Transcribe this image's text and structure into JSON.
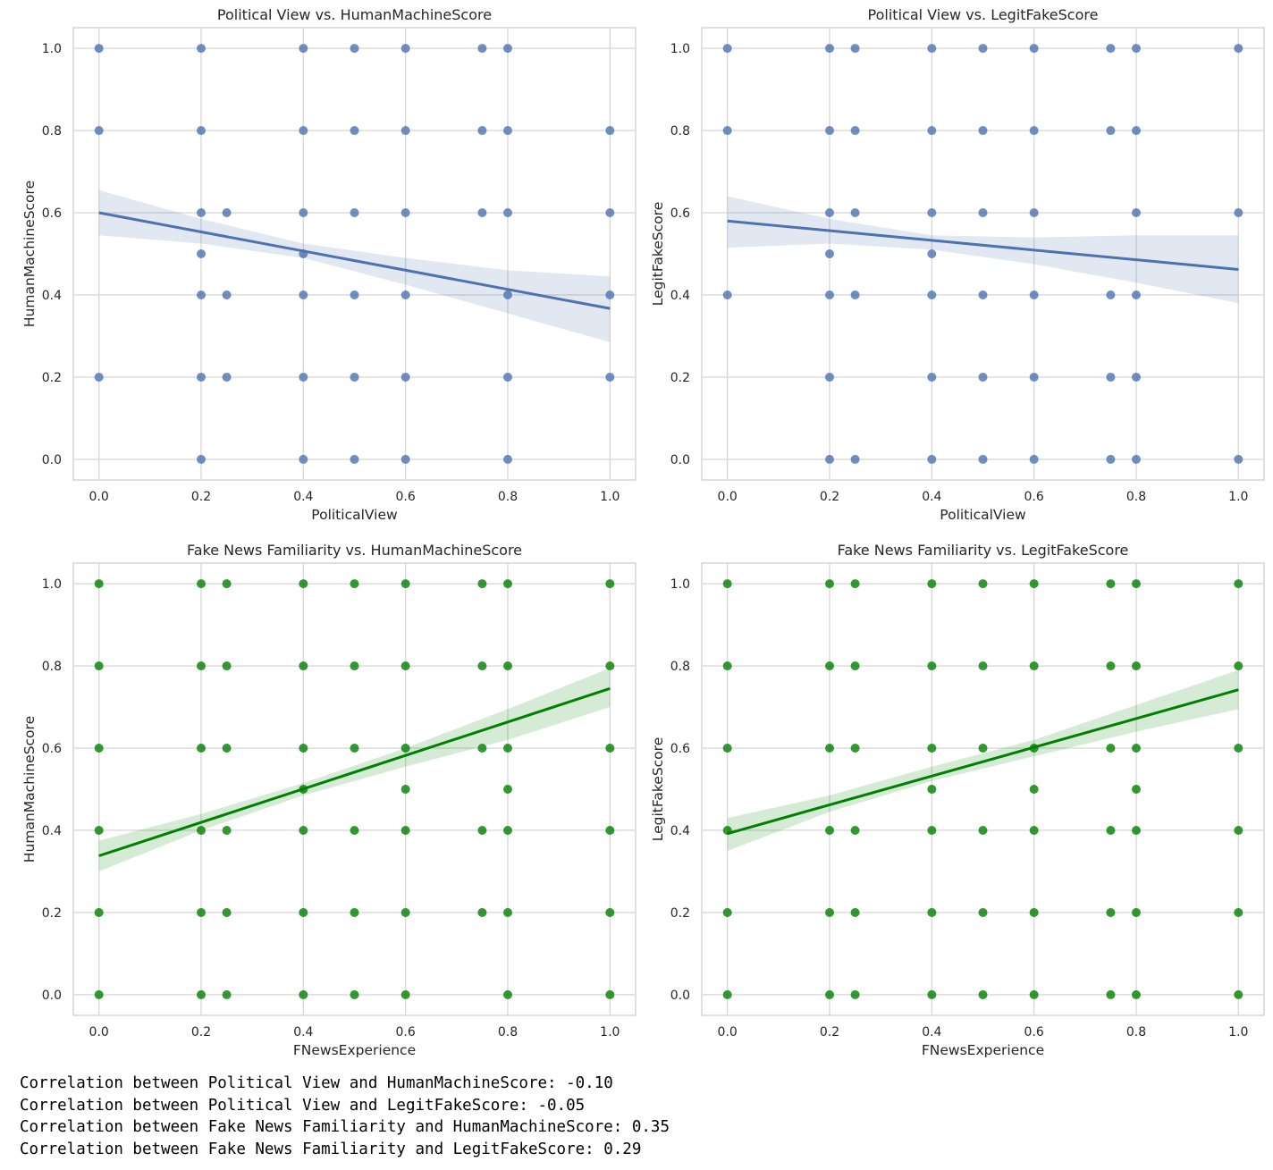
{
  "chart_data": [
    {
      "type": "scatter",
      "title": "Political View vs. HumanMachineScore",
      "xlabel": "PoliticalView",
      "ylabel": "HumanMachineScore",
      "xlim": [
        0.0,
        1.0
      ],
      "ylim": [
        0.0,
        1.0
      ],
      "xticks": [
        "0.0",
        "0.2",
        "0.4",
        "0.6",
        "0.8",
        "1.0"
      ],
      "yticks": [
        "0.0",
        "0.2",
        "0.4",
        "0.6",
        "0.8",
        "1.0"
      ],
      "grid": true,
      "color": "#4c72b0",
      "points": [
        [
          0.0,
          1.0
        ],
        [
          0.0,
          0.8
        ],
        [
          0.0,
          0.2
        ],
        [
          0.2,
          1.0
        ],
        [
          0.2,
          0.8
        ],
        [
          0.2,
          0.6
        ],
        [
          0.2,
          0.5
        ],
        [
          0.2,
          0.4
        ],
        [
          0.2,
          0.2
        ],
        [
          0.2,
          0.0
        ],
        [
          0.25,
          0.6
        ],
        [
          0.25,
          0.4
        ],
        [
          0.25,
          0.2
        ],
        [
          0.4,
          1.0
        ],
        [
          0.4,
          0.8
        ],
        [
          0.4,
          0.6
        ],
        [
          0.4,
          0.5
        ],
        [
          0.4,
          0.4
        ],
        [
          0.4,
          0.2
        ],
        [
          0.4,
          0.0
        ],
        [
          0.5,
          1.0
        ],
        [
          0.5,
          0.8
        ],
        [
          0.5,
          0.6
        ],
        [
          0.5,
          0.4
        ],
        [
          0.5,
          0.2
        ],
        [
          0.5,
          0.0
        ],
        [
          0.6,
          1.0
        ],
        [
          0.6,
          0.8
        ],
        [
          0.6,
          0.6
        ],
        [
          0.6,
          0.4
        ],
        [
          0.6,
          0.2
        ],
        [
          0.6,
          0.0
        ],
        [
          0.75,
          1.0
        ],
        [
          0.75,
          0.8
        ],
        [
          0.75,
          0.6
        ],
        [
          0.8,
          1.0
        ],
        [
          0.8,
          0.8
        ],
        [
          0.8,
          0.6
        ],
        [
          0.8,
          0.4
        ],
        [
          0.8,
          0.2
        ],
        [
          0.8,
          0.0
        ],
        [
          1.0,
          0.8
        ],
        [
          1.0,
          0.6
        ],
        [
          1.0,
          0.4
        ],
        [
          1.0,
          0.2
        ]
      ],
      "regression": {
        "x": [
          0.0,
          1.0
        ],
        "y": [
          0.6,
          0.367
        ]
      },
      "confidence_band": {
        "x": [
          0.0,
          0.2,
          0.4,
          0.6,
          0.8,
          1.0
        ],
        "lower": [
          0.545,
          0.525,
          0.49,
          0.425,
          0.355,
          0.285
        ],
        "upper": [
          0.655,
          0.585,
          0.525,
          0.49,
          0.46,
          0.445
        ]
      }
    },
    {
      "type": "scatter",
      "title": "Political View vs. LegitFakeScore",
      "xlabel": "PoliticalView",
      "ylabel": "LegitFakeScore",
      "xlim": [
        0.0,
        1.0
      ],
      "ylim": [
        0.0,
        1.0
      ],
      "xticks": [
        "0.0",
        "0.2",
        "0.4",
        "0.6",
        "0.8",
        "1.0"
      ],
      "yticks": [
        "0.0",
        "0.2",
        "0.4",
        "0.6",
        "0.8",
        "1.0"
      ],
      "grid": true,
      "color": "#4c72b0",
      "points": [
        [
          0.0,
          1.0
        ],
        [
          0.0,
          0.8
        ],
        [
          0.0,
          0.4
        ],
        [
          0.2,
          1.0
        ],
        [
          0.2,
          0.8
        ],
        [
          0.2,
          0.6
        ],
        [
          0.2,
          0.5
        ],
        [
          0.2,
          0.4
        ],
        [
          0.2,
          0.2
        ],
        [
          0.2,
          0.0
        ],
        [
          0.25,
          1.0
        ],
        [
          0.25,
          0.8
        ],
        [
          0.25,
          0.6
        ],
        [
          0.25,
          0.4
        ],
        [
          0.25,
          0.0
        ],
        [
          0.4,
          1.0
        ],
        [
          0.4,
          0.8
        ],
        [
          0.4,
          0.6
        ],
        [
          0.4,
          0.5
        ],
        [
          0.4,
          0.4
        ],
        [
          0.4,
          0.2
        ],
        [
          0.4,
          0.0
        ],
        [
          0.5,
          1.0
        ],
        [
          0.5,
          0.8
        ],
        [
          0.5,
          0.6
        ],
        [
          0.5,
          0.4
        ],
        [
          0.5,
          0.2
        ],
        [
          0.5,
          0.0
        ],
        [
          0.6,
          1.0
        ],
        [
          0.6,
          0.8
        ],
        [
          0.6,
          0.6
        ],
        [
          0.6,
          0.4
        ],
        [
          0.6,
          0.2
        ],
        [
          0.6,
          0.0
        ],
        [
          0.75,
          1.0
        ],
        [
          0.75,
          0.8
        ],
        [
          0.75,
          0.4
        ],
        [
          0.75,
          0.2
        ],
        [
          0.75,
          0.0
        ],
        [
          0.8,
          1.0
        ],
        [
          0.8,
          0.8
        ],
        [
          0.8,
          0.6
        ],
        [
          0.8,
          0.4
        ],
        [
          0.8,
          0.2
        ],
        [
          0.8,
          0.0
        ],
        [
          1.0,
          1.0
        ],
        [
          1.0,
          0.6
        ],
        [
          1.0,
          0.0
        ]
      ],
      "regression": {
        "x": [
          0.0,
          1.0
        ],
        "y": [
          0.58,
          0.462
        ]
      },
      "confidence_band": {
        "x": [
          0.0,
          0.2,
          0.4,
          0.6,
          0.8,
          1.0
        ],
        "lower": [
          0.515,
          0.525,
          0.51,
          0.475,
          0.43,
          0.38
        ],
        "upper": [
          0.64,
          0.585,
          0.545,
          0.54,
          0.545,
          0.545
        ]
      }
    },
    {
      "type": "scatter",
      "title": "Fake News Familiarity vs. HumanMachineScore",
      "xlabel": "FNewsExperience",
      "ylabel": "HumanMachineScore",
      "xlim": [
        0.0,
        1.0
      ],
      "ylim": [
        0.0,
        1.0
      ],
      "xticks": [
        "0.0",
        "0.2",
        "0.4",
        "0.6",
        "0.8",
        "1.0"
      ],
      "yticks": [
        "0.0",
        "0.2",
        "0.4",
        "0.6",
        "0.8",
        "1.0"
      ],
      "grid": true,
      "color": "#008000",
      "points": [
        [
          0.0,
          1.0
        ],
        [
          0.0,
          0.8
        ],
        [
          0.0,
          0.6
        ],
        [
          0.0,
          0.4
        ],
        [
          0.0,
          0.2
        ],
        [
          0.0,
          0.0
        ],
        [
          0.2,
          1.0
        ],
        [
          0.2,
          0.8
        ],
        [
          0.2,
          0.6
        ],
        [
          0.2,
          0.4
        ],
        [
          0.2,
          0.2
        ],
        [
          0.2,
          0.0
        ],
        [
          0.25,
          1.0
        ],
        [
          0.25,
          0.8
        ],
        [
          0.25,
          0.6
        ],
        [
          0.25,
          0.4
        ],
        [
          0.25,
          0.2
        ],
        [
          0.25,
          0.0
        ],
        [
          0.4,
          1.0
        ],
        [
          0.4,
          0.8
        ],
        [
          0.4,
          0.6
        ],
        [
          0.4,
          0.5
        ],
        [
          0.4,
          0.4
        ],
        [
          0.4,
          0.2
        ],
        [
          0.4,
          0.0
        ],
        [
          0.5,
          1.0
        ],
        [
          0.5,
          0.8
        ],
        [
          0.5,
          0.6
        ],
        [
          0.5,
          0.4
        ],
        [
          0.5,
          0.2
        ],
        [
          0.5,
          0.0
        ],
        [
          0.6,
          1.0
        ],
        [
          0.6,
          0.8
        ],
        [
          0.6,
          0.6
        ],
        [
          0.6,
          0.5
        ],
        [
          0.6,
          0.4
        ],
        [
          0.6,
          0.2
        ],
        [
          0.6,
          0.0
        ],
        [
          0.75,
          1.0
        ],
        [
          0.75,
          0.8
        ],
        [
          0.75,
          0.6
        ],
        [
          0.75,
          0.4
        ],
        [
          0.75,
          0.2
        ],
        [
          0.8,
          1.0
        ],
        [
          0.8,
          0.8
        ],
        [
          0.8,
          0.6
        ],
        [
          0.8,
          0.5
        ],
        [
          0.8,
          0.4
        ],
        [
          0.8,
          0.2
        ],
        [
          0.8,
          0.0
        ],
        [
          1.0,
          1.0
        ],
        [
          1.0,
          0.8
        ],
        [
          1.0,
          0.6
        ],
        [
          1.0,
          0.4
        ],
        [
          1.0,
          0.2
        ],
        [
          1.0,
          0.0
        ]
      ],
      "regression": {
        "x": [
          0.0,
          1.0
        ],
        "y": [
          0.338,
          0.745
        ]
      },
      "confidence_band": {
        "x": [
          0.0,
          0.2,
          0.4,
          0.6,
          0.8,
          1.0
        ],
        "lower": [
          0.3,
          0.4,
          0.485,
          0.555,
          0.62,
          0.7
        ],
        "upper": [
          0.375,
          0.44,
          0.515,
          0.6,
          0.695,
          0.795
        ]
      }
    },
    {
      "type": "scatter",
      "title": "Fake News Familiarity vs. LegitFakeScore",
      "xlabel": "FNewsExperience",
      "ylabel": "LegitFakeScore",
      "xlim": [
        0.0,
        1.0
      ],
      "ylim": [
        0.0,
        1.0
      ],
      "xticks": [
        "0.0",
        "0.2",
        "0.4",
        "0.6",
        "0.8",
        "1.0"
      ],
      "yticks": [
        "0.0",
        "0.2",
        "0.4",
        "0.6",
        "0.8",
        "1.0"
      ],
      "grid": true,
      "color": "#008000",
      "points": [
        [
          0.0,
          1.0
        ],
        [
          0.0,
          0.8
        ],
        [
          0.0,
          0.6
        ],
        [
          0.0,
          0.4
        ],
        [
          0.0,
          0.2
        ],
        [
          0.0,
          0.0
        ],
        [
          0.2,
          1.0
        ],
        [
          0.2,
          0.8
        ],
        [
          0.2,
          0.6
        ],
        [
          0.2,
          0.4
        ],
        [
          0.2,
          0.2
        ],
        [
          0.2,
          0.0
        ],
        [
          0.25,
          1.0
        ],
        [
          0.25,
          0.8
        ],
        [
          0.25,
          0.6
        ],
        [
          0.25,
          0.4
        ],
        [
          0.25,
          0.2
        ],
        [
          0.25,
          0.0
        ],
        [
          0.4,
          1.0
        ],
        [
          0.4,
          0.8
        ],
        [
          0.4,
          0.6
        ],
        [
          0.4,
          0.5
        ],
        [
          0.4,
          0.4
        ],
        [
          0.4,
          0.2
        ],
        [
          0.4,
          0.0
        ],
        [
          0.5,
          1.0
        ],
        [
          0.5,
          0.8
        ],
        [
          0.5,
          0.6
        ],
        [
          0.5,
          0.4
        ],
        [
          0.5,
          0.2
        ],
        [
          0.5,
          0.0
        ],
        [
          0.6,
          1.0
        ],
        [
          0.6,
          0.8
        ],
        [
          0.6,
          0.6
        ],
        [
          0.6,
          0.5
        ],
        [
          0.6,
          0.4
        ],
        [
          0.6,
          0.2
        ],
        [
          0.6,
          0.0
        ],
        [
          0.75,
          1.0
        ],
        [
          0.75,
          0.8
        ],
        [
          0.75,
          0.6
        ],
        [
          0.75,
          0.4
        ],
        [
          0.75,
          0.2
        ],
        [
          0.75,
          0.0
        ],
        [
          0.8,
          1.0
        ],
        [
          0.8,
          0.8
        ],
        [
          0.8,
          0.6
        ],
        [
          0.8,
          0.5
        ],
        [
          0.8,
          0.4
        ],
        [
          0.8,
          0.2
        ],
        [
          0.8,
          0.0
        ],
        [
          1.0,
          1.0
        ],
        [
          1.0,
          0.8
        ],
        [
          1.0,
          0.6
        ],
        [
          1.0,
          0.4
        ],
        [
          1.0,
          0.2
        ],
        [
          1.0,
          0.0
        ]
      ],
      "regression": {
        "x": [
          0.0,
          1.0
        ],
        "y": [
          0.392,
          0.742
        ]
      },
      "confidence_band": {
        "x": [
          0.0,
          0.2,
          0.4,
          0.6,
          0.8,
          1.0
        ],
        "lower": [
          0.35,
          0.445,
          0.52,
          0.58,
          0.64,
          0.695
        ],
        "upper": [
          0.43,
          0.485,
          0.555,
          0.62,
          0.705,
          0.79
        ]
      }
    }
  ],
  "output": {
    "lines": [
      "Correlation between Political View and HumanMachineScore: -0.10",
      "Correlation between Political View and LegitFakeScore: -0.05",
      "Correlation between Fake News Familiarity and HumanMachineScore: 0.35",
      "Correlation between Fake News Familiarity and LegitFakeScore: 0.29"
    ]
  }
}
